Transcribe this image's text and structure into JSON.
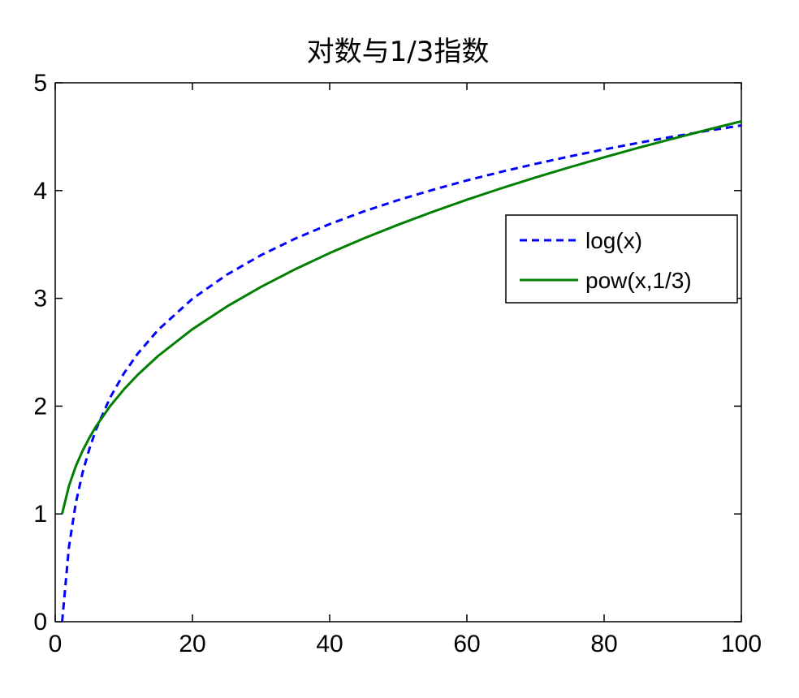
{
  "chart_data": {
    "type": "line",
    "title": "对数与1/3指数",
    "xlim": [
      0,
      100
    ],
    "ylim": [
      0,
      5
    ],
    "xticks": [
      0,
      20,
      40,
      60,
      80,
      100
    ],
    "yticks": [
      0,
      1,
      2,
      3,
      4,
      5
    ],
    "xtick_labels": [
      "0",
      "20",
      "40",
      "60",
      "80",
      "100"
    ],
    "ytick_labels": [
      "0",
      "1",
      "2",
      "3",
      "4",
      "5"
    ],
    "grid": false,
    "legend_position": "right",
    "series": [
      {
        "name": "log(x)",
        "color": "#0000ff",
        "style": "dashed",
        "x": [
          1,
          2,
          3,
          4,
          5,
          6,
          8,
          10,
          12,
          15,
          20,
          25,
          30,
          35,
          40,
          45,
          50,
          55,
          60,
          65,
          70,
          75,
          80,
          85,
          90,
          95,
          100
        ],
        "y": [
          0,
          0.693,
          1.099,
          1.386,
          1.609,
          1.792,
          2.079,
          2.303,
          2.485,
          2.708,
          2.996,
          3.219,
          3.401,
          3.555,
          3.689,
          3.807,
          3.912,
          4.007,
          4.094,
          4.174,
          4.248,
          4.317,
          4.382,
          4.443,
          4.5,
          4.554,
          4.605
        ]
      },
      {
        "name": "pow(x,1/3)",
        "color": "#007f00",
        "style": "solid",
        "x": [
          1,
          2,
          3,
          4,
          5,
          6,
          8,
          10,
          12,
          15,
          20,
          25,
          30,
          35,
          40,
          45,
          50,
          55,
          60,
          65,
          70,
          75,
          80,
          85,
          90,
          95,
          100
        ],
        "y": [
          1,
          1.26,
          1.442,
          1.587,
          1.71,
          1.817,
          2,
          2.154,
          2.289,
          2.466,
          2.714,
          2.924,
          3.107,
          3.271,
          3.42,
          3.557,
          3.684,
          3.803,
          3.915,
          4.021,
          4.121,
          4.217,
          4.309,
          4.397,
          4.481,
          4.563,
          4.642
        ]
      }
    ]
  }
}
